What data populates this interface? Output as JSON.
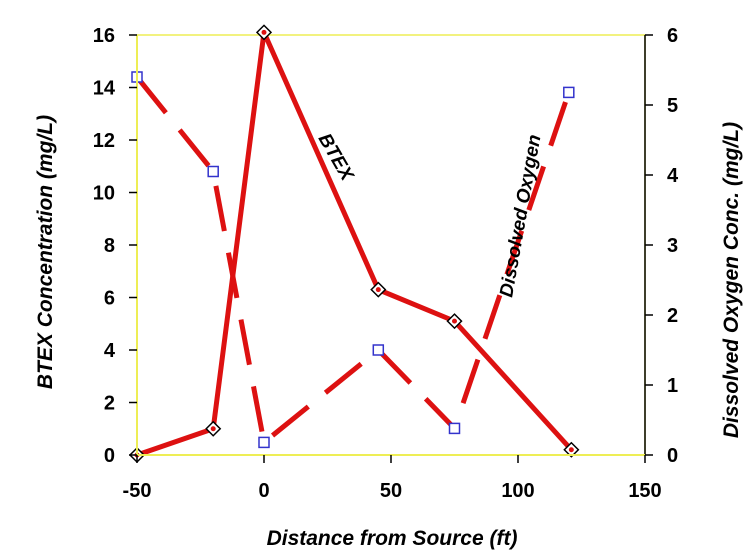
{
  "chart_data": {
    "type": "line",
    "x_axis": {
      "label": "Distance from Source (ft)",
      "ticks": [
        -50,
        0,
        50,
        100,
        150
      ],
      "range": [
        -50,
        150
      ]
    },
    "y_left": {
      "label": "BTEX Concentration (mg/L)",
      "ticks": [
        0,
        2,
        4,
        6,
        8,
        10,
        12,
        14,
        16
      ],
      "range": [
        0,
        16
      ]
    },
    "y_right": {
      "label": "Dissolved Oxygen Conc. (mg/L)",
      "ticks": [
        0,
        1,
        2,
        3,
        4,
        5,
        6
      ],
      "range": [
        0,
        6
      ]
    },
    "series": [
      {
        "name": "BTEX",
        "axis": "left",
        "line_style": "solid",
        "marker": "diamond",
        "color": "#dd1111",
        "x": [
          -50,
          -20,
          0,
          45,
          75,
          121
        ],
        "y": [
          0,
          1,
          16.1,
          6.3,
          5.1,
          0.2
        ]
      },
      {
        "name": "Dissolved Oxygen",
        "axis": "right",
        "line_style": "dashed",
        "marker": "square",
        "color": "#dd1111",
        "marker_color": "#3333cc",
        "x": [
          -50,
          -20,
          0,
          45,
          75,
          120
        ],
        "y": [
          5.4,
          4.05,
          0.18,
          1.5,
          0.38,
          5.18
        ]
      }
    ],
    "grid": false,
    "plot_border_color": "#eeee55",
    "legend": "none (series labeled inline)"
  }
}
